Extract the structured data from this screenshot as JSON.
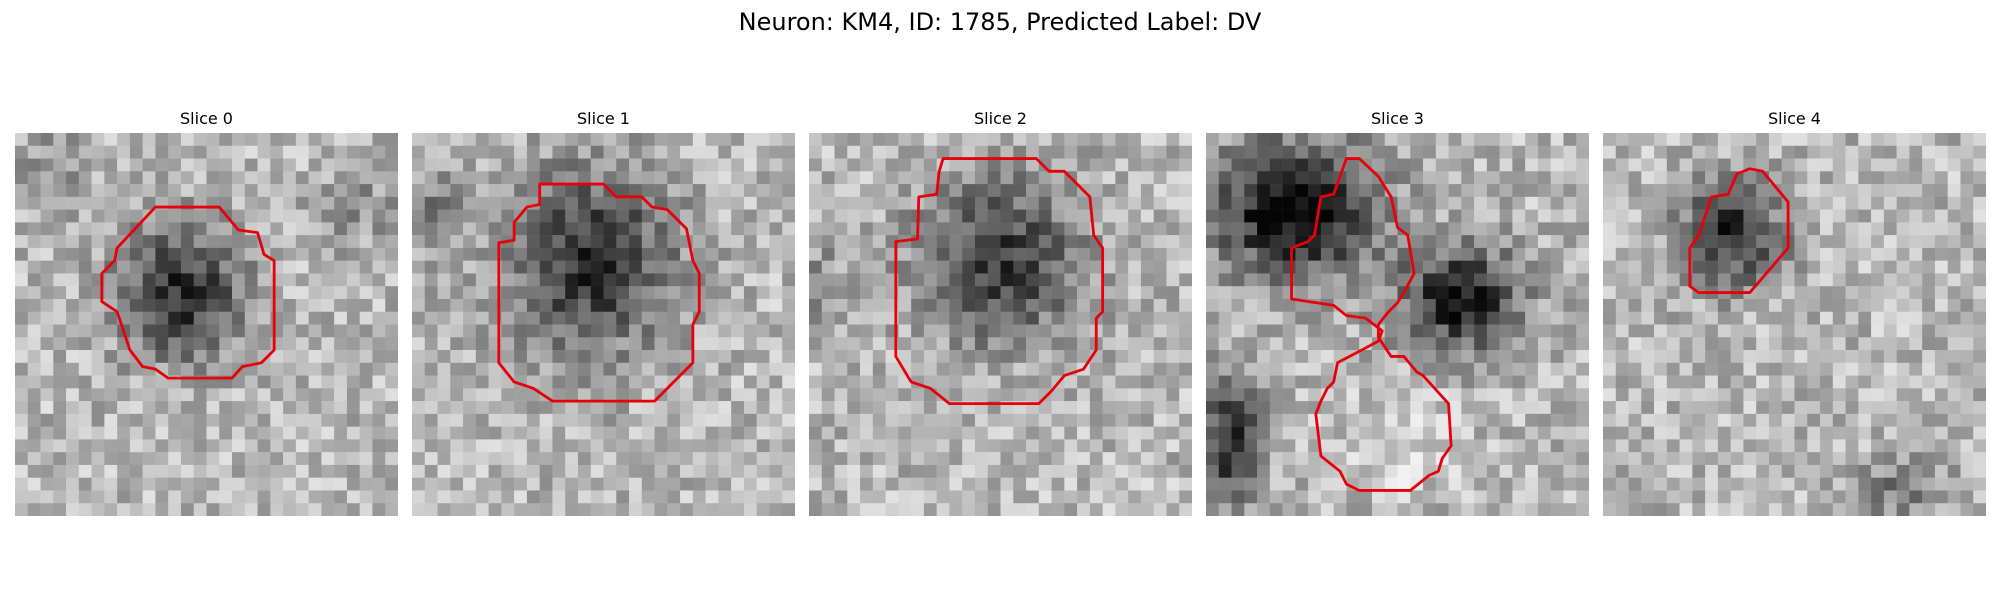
{
  "figure": {
    "title": "Neuron: KM4, ID: 1785, Predicted Label: DV"
  },
  "panels": [
    {
      "title": "Slice 0"
    },
    {
      "title": "Slice 1"
    },
    {
      "title": "Slice 2"
    },
    {
      "title": "Slice 3"
    },
    {
      "title": "Slice 4"
    }
  ],
  "colors": {
    "contour": "#e8000b",
    "colormap": "gray"
  }
}
